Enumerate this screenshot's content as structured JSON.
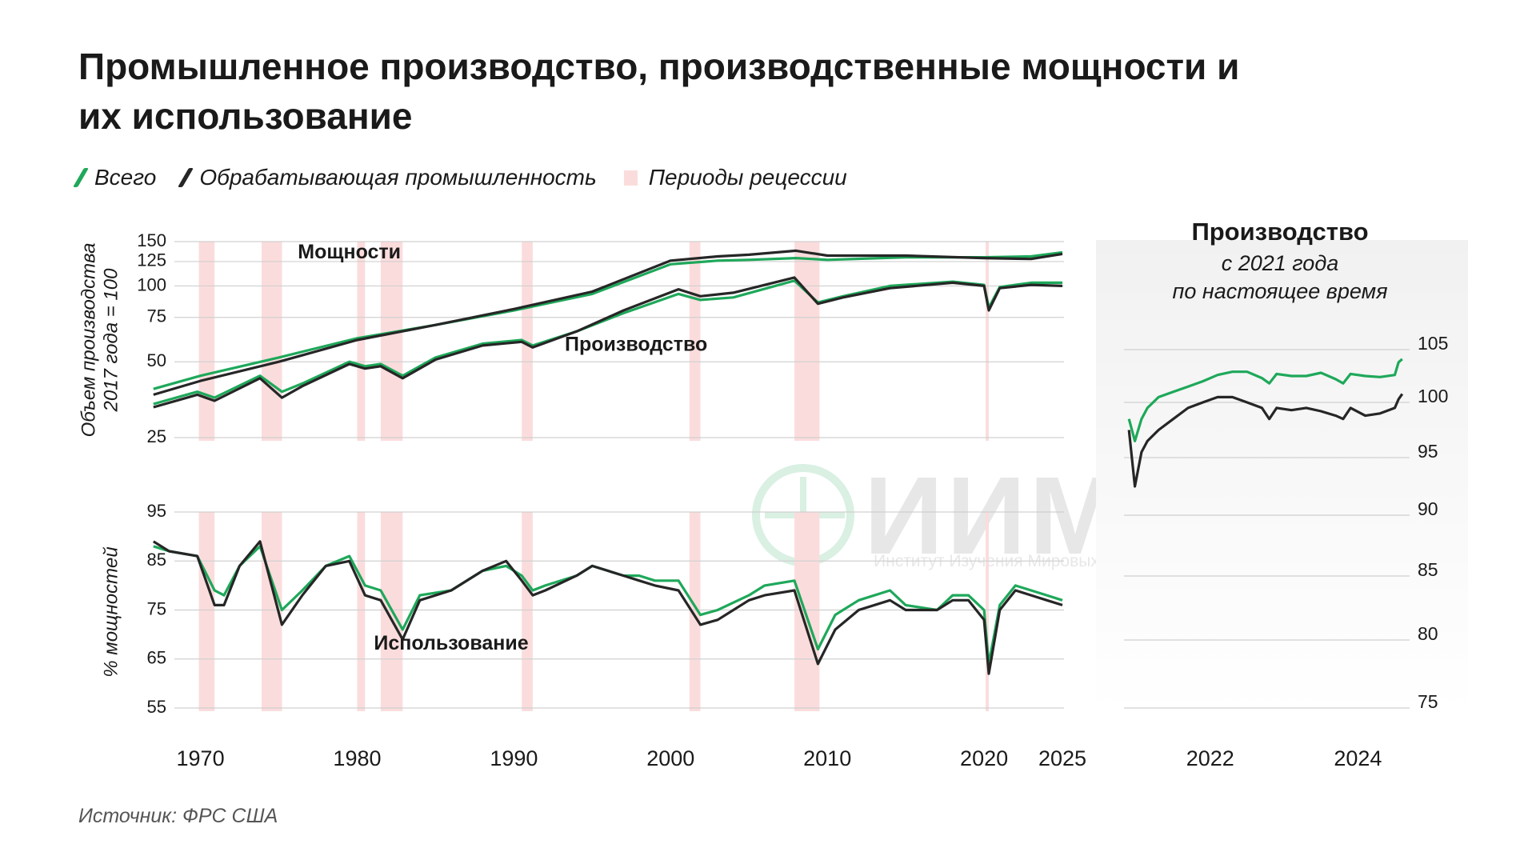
{
  "title": "Промышленное производство, производственные мощности и их использование",
  "legend": {
    "total": "Всего",
    "manufacturing": "Обрабатывающая промышленность",
    "recession": "Периоды рецессии"
  },
  "colors": {
    "total": "#1ea85a",
    "manufacturing": "#262626",
    "recession": "#fbdcdc",
    "grid": "#d0d0d0"
  },
  "source": "Источник: ФРС США",
  "watermark": {
    "name": "ИИМР",
    "subtitle": "Институт Изучения Мировых Рынков"
  },
  "chart_data": [
    {
      "type": "line",
      "scale": "log",
      "ylabel": [
        "Объем производства",
        "2017 года = 100"
      ],
      "yticks": [
        150,
        125,
        100,
        75,
        50,
        25
      ],
      "ylim": [
        25,
        150
      ],
      "xlim": [
        1966.5,
        2025.1
      ],
      "xticks": [
        1970,
        1980,
        1990,
        2000,
        2010,
        2020,
        2025
      ],
      "recessions": [
        [
          1969.9,
          1970.9
        ],
        [
          1973.9,
          1975.2
        ],
        [
          1980.0,
          1980.5
        ],
        [
          1981.5,
          1982.9
        ],
        [
          1990.5,
          1991.2
        ],
        [
          2001.2,
          2001.9
        ],
        [
          2007.9,
          2009.5
        ],
        [
          2020.1,
          2020.3
        ]
      ],
      "annotations": [
        {
          "text": "Мощности",
          "x": 1979.5,
          "y": 135
        },
        {
          "text": "Производство",
          "x": 1997.8,
          "y": 58
        }
      ],
      "series": [
        {
          "name": "Всего",
          "group": "Мощности",
          "color": "#1ea85a",
          "x": [
            1967,
            1970,
            1975,
            1980,
            1985,
            1990,
            1995,
            2000,
            2003,
            2005,
            2008,
            2010,
            2015,
            2020,
            2023,
            2025
          ],
          "y": [
            39,
            44,
            52,
            62,
            70,
            80,
            93,
            122,
            126,
            127,
            129,
            127,
            130,
            130,
            131,
            136
          ]
        },
        {
          "name": "Обрабатывающая промышленность",
          "group": "Мощности",
          "color": "#262626",
          "x": [
            1967,
            1970,
            1975,
            1980,
            1985,
            1990,
            1995,
            2000,
            2003,
            2005,
            2008,
            2010,
            2015,
            2020,
            2023,
            2025
          ],
          "y": [
            37,
            42,
            50,
            61,
            70,
            81,
            95,
            126,
            131,
            133,
            138,
            132,
            132,
            129,
            128,
            134
          ]
        },
        {
          "name": "Всего",
          "group": "Производство",
          "color": "#1ea85a",
          "x": [
            1967,
            1969.8,
            1970.9,
            1973.8,
            1975.2,
            1976.5,
            1979.5,
            1980.5,
            1981.5,
            1982.9,
            1985,
            1988,
            1990.5,
            1991.2,
            1994,
            1997,
            2000.5,
            2001.9,
            2004,
            2007.9,
            2009.4,
            2011,
            2014,
            2018,
            2020.0,
            2020.3,
            2021,
            2023,
            2025
          ],
          "y": [
            34,
            38,
            36,
            44,
            38,
            41,
            50,
            48,
            49,
            44,
            52,
            59,
            61,
            58,
            66,
            78,
            93,
            88,
            90,
            105,
            86,
            91,
            100,
            104,
            101,
            82,
            99,
            103,
            103
          ]
        },
        {
          "name": "Обрабатывающая промышленность",
          "group": "Производство",
          "color": "#262626",
          "x": [
            1967,
            1969.8,
            1970.9,
            1973.8,
            1975.2,
            1976.5,
            1979.5,
            1980.5,
            1981.5,
            1982.9,
            1985,
            1988,
            1990.5,
            1991.2,
            1994,
            1997,
            2000.5,
            2001.9,
            2004,
            2007.9,
            2009.4,
            2011,
            2014,
            2018,
            2020.0,
            2020.3,
            2021,
            2023,
            2025
          ],
          "y": [
            33,
            37,
            35,
            43,
            36,
            40,
            49,
            47,
            48,
            43,
            51,
            58,
            60,
            57,
            66,
            80,
            97,
            91,
            94,
            108,
            85,
            90,
            98,
            103,
            100,
            80,
            98,
            101,
            100
          ]
        }
      ]
    },
    {
      "type": "line",
      "ylabel": "% мощностей",
      "yticks": [
        95,
        85,
        75,
        65,
        55
      ],
      "ylim": [
        55,
        95
      ],
      "xlim": [
        1966.5,
        2025.1
      ],
      "xticks": [
        1970,
        1980,
        1990,
        2000,
        2010,
        2020,
        2025
      ],
      "annotations": [
        {
          "text": "Использование",
          "x": 1986,
          "y": 68
        }
      ],
      "series": [
        {
          "name": "Всего",
          "color": "#1ea85a",
          "x": [
            1967,
            1968,
            1969.8,
            1970.9,
            1971.5,
            1972.5,
            1973.8,
            1975.2,
            1976.5,
            1978,
            1979.5,
            1980.5,
            1981.5,
            1982.9,
            1984,
            1986,
            1988,
            1989.5,
            1990.5,
            1991.2,
            1992,
            1994,
            1995,
            1997,
            1998,
            1999,
            2000.5,
            2001.9,
            2003,
            2005,
            2006,
            2007.9,
            2009.4,
            2010.5,
            2012,
            2014,
            2015,
            2017,
            2018,
            2019,
            2020.0,
            2020.3,
            2021,
            2022,
            2023,
            2024,
            2025
          ],
          "y": [
            88,
            87,
            86,
            79,
            78,
            84,
            88,
            75,
            79,
            84,
            86,
            80,
            79,
            71,
            78,
            79,
            83,
            84,
            82,
            79,
            80,
            82,
            84,
            82,
            82,
            81,
            81,
            74,
            75,
            78,
            80,
            81,
            67,
            74,
            77,
            79,
            76,
            75,
            78,
            78,
            75,
            64,
            76,
            80,
            79,
            78,
            77
          ]
        },
        {
          "name": "Обрабатывающая промышленность",
          "color": "#262626",
          "x": [
            1967,
            1968,
            1969.8,
            1970.9,
            1971.5,
            1972.5,
            1973.8,
            1975.2,
            1976.5,
            1978,
            1979.5,
            1980.5,
            1981.5,
            1982.9,
            1984,
            1986,
            1988,
            1989.5,
            1990.5,
            1991.2,
            1992,
            1994,
            1995,
            1997,
            1998,
            1999,
            2000.5,
            2001.9,
            2003,
            2005,
            2006,
            2007.9,
            2009.4,
            2010.5,
            2012,
            2014,
            2015,
            2017,
            2018,
            2019,
            2020.0,
            2020.3,
            2021,
            2022,
            2023,
            2024,
            2025
          ],
          "y": [
            89,
            87,
            86,
            76,
            76,
            84,
            89,
            72,
            78,
            84,
            85,
            78,
            77,
            69,
            77,
            79,
            83,
            85,
            81,
            78,
            79,
            82,
            84,
            82,
            81,
            80,
            79,
            72,
            73,
            77,
            78,
            79,
            64,
            71,
            75,
            77,
            75,
            75,
            77,
            77,
            73,
            62,
            75,
            79,
            78,
            77,
            76
          ]
        }
      ]
    },
    {
      "type": "line",
      "title": "Производство",
      "subtitle": [
        "с 2021 года",
        "по настоящее время"
      ],
      "yticks": [
        105,
        100,
        95,
        90,
        85,
        80,
        75
      ],
      "ylim": [
        75,
        105
      ],
      "xlim": [
        2020.9,
        2024.8
      ],
      "xticks": [
        2022,
        2024
      ],
      "series": [
        {
          "name": "Всего",
          "color": "#1ea85a",
          "x": [
            2021.0,
            2021.08,
            2021.17,
            2021.25,
            2021.4,
            2021.6,
            2021.8,
            2022.0,
            2022.2,
            2022.4,
            2022.6,
            2022.8,
            2022.9,
            2023.0,
            2023.2,
            2023.4,
            2023.6,
            2023.8,
            2023.9,
            2024.0,
            2024.2,
            2024.4,
            2024.6,
            2024.65,
            2024.7
          ],
          "y": [
            98.5,
            96.5,
            98.5,
            99.5,
            100.5,
            101,
            101.5,
            102,
            102.6,
            102.9,
            102.9,
            102.3,
            101.8,
            102.7,
            102.5,
            102.5,
            102.8,
            102.2,
            101.8,
            102.7,
            102.5,
            102.4,
            102.6,
            103.8,
            104.1
          ]
        },
        {
          "name": "Обрабатывающая промышленность",
          "color": "#262626",
          "x": [
            2021.0,
            2021.08,
            2021.17,
            2021.25,
            2021.4,
            2021.6,
            2021.8,
            2022.0,
            2022.2,
            2022.4,
            2022.6,
            2022.8,
            2022.9,
            2023.0,
            2023.2,
            2023.4,
            2023.6,
            2023.8,
            2023.9,
            2024.0,
            2024.2,
            2024.4,
            2024.6,
            2024.65,
            2024.7
          ],
          "y": [
            97.5,
            92.5,
            95.5,
            96.5,
            97.5,
            98.5,
            99.5,
            100,
            100.5,
            100.5,
            100,
            99.5,
            98.5,
            99.5,
            99.3,
            99.5,
            99.2,
            98.8,
            98.5,
            99.5,
            98.8,
            99,
            99.5,
            100.3,
            100.8
          ]
        }
      ]
    }
  ]
}
